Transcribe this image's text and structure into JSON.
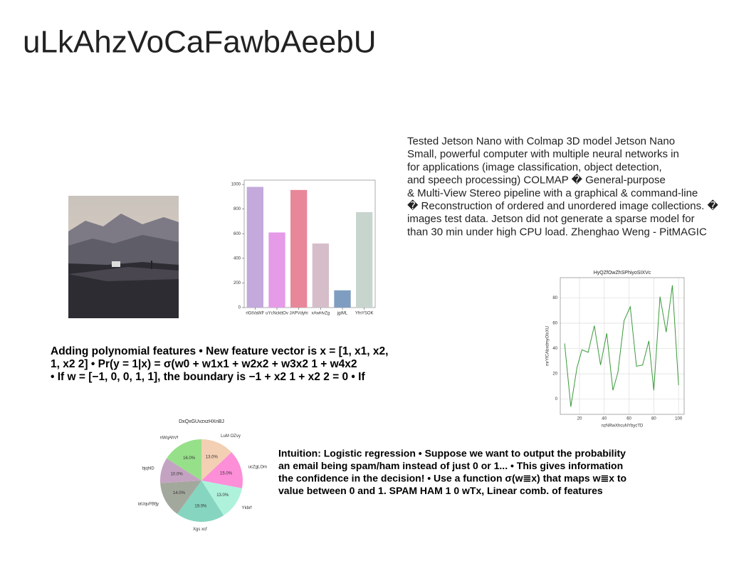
{
  "title": "uLkAhzVoCaFawbAeebU",
  "paragraphs": [
    {
      "lines": [
        "Tested Jetson Nano with Colmap 3D model Jetson Nano",
        "Small, powerful computer with multiple neural networks in",
        "for applications (image classification, object detection,",
        "and speech processing) COLMAP � General-purpose",
        "& Multi-View Stereo pipeline with a graphical & command-line",
        "� Reconstruction of ordered and unordered image collections. �",
        "images test data. Jetson did not generate a sparse model for",
        "than 30 min under high CPU load. Zhenghao Weng - PitMAGIC"
      ]
    },
    {
      "lines": [
        "Adding polynomial features • New feature vector is x = [1, x1, x2,",
        "1, x2 2] • Pr(y = 1|x) = σ(w0 + w1x1 + w2x2 + w3x2 1 + w4x2",
        "• If w = [−1, 0, 0, 1, 1], the boundary is −1 + x2 1 + x2 2 = 0 • If"
      ]
    },
    {
      "lines": [
        "Intuition: Logistic regression • Suppose we want to output the probability",
        "an email being spam/ham instead of just 0 or 1... • This gives information",
        "the confidence in the decision! • Use a function σ(w≣x) that maps w≣x to",
        "value between 0 and 1. SPAM HAM 1 0 wTx, Linear comb. of features"
      ]
    }
  ],
  "chart_data": [
    {
      "type": "bar",
      "categories": [
        "rlGtVaWF",
        "uYcNckttOv",
        "JAPVdyhi",
        "xAwHvZg",
        "jgiML",
        "YfnYSOK"
      ],
      "values": [
        980,
        610,
        955,
        520,
        140,
        775
      ],
      "colors": [
        "#c3a9dc",
        "#e59be8",
        "#e8879a",
        "#d5bdc9",
        "#7e9dc0",
        "#c8d5cf"
      ],
      "ylim": [
        0,
        1035
      ],
      "yticks": [
        0,
        200,
        400,
        600,
        800,
        1000
      ]
    },
    {
      "type": "line",
      "title": "HyQZfOwZhSPhiyoSIXVc",
      "xlabel": "nzNRwXhcuNYbycTD",
      "ylabel": "mrYfCAbxdmyOlxXU",
      "x": [
        8,
        13,
        18,
        22,
        27,
        32,
        37,
        42,
        47,
        51,
        56,
        61,
        66,
        71,
        76,
        80,
        85,
        90,
        95,
        100
      ],
      "series": [
        {
          "color": "#3a9a3a",
          "values": [
            44,
            -6,
            25,
            39,
            37,
            58,
            27,
            52,
            7,
            21,
            62,
            73,
            26,
            27,
            46,
            7,
            81,
            53,
            90,
            11
          ]
        }
      ],
      "xlim": [
        4.5,
        104.5
      ],
      "xticks": [
        20,
        40,
        60,
        80,
        100
      ],
      "ylim": [
        -12,
        96
      ],
      "yticks": [
        0,
        20,
        40,
        60,
        80
      ],
      "grid": true
    },
    {
      "type": "pie",
      "title": "DxQxGUvzxzHXnBJ",
      "categories": [
        "LuM OZvy",
        "ucZgLOm",
        "Ykbrf",
        "Xgs xcf",
        "iaUquFBfjy",
        "bjqhlD",
        "nWqAhVf"
      ],
      "values": [
        13,
        15,
        13,
        19,
        14,
        10,
        16
      ],
      "value_labels": [
        "13.0%",
        "15.0%",
        "13.0%",
        "19.0%",
        "14.0%",
        "10.0%",
        "16.0%"
      ],
      "colors": [
        "#f3cfb3",
        "#fd8ed8",
        "#aef2dc",
        "#86d5c0",
        "#a3a89d",
        "#c4a3c2",
        "#97e08a"
      ]
    }
  ]
}
